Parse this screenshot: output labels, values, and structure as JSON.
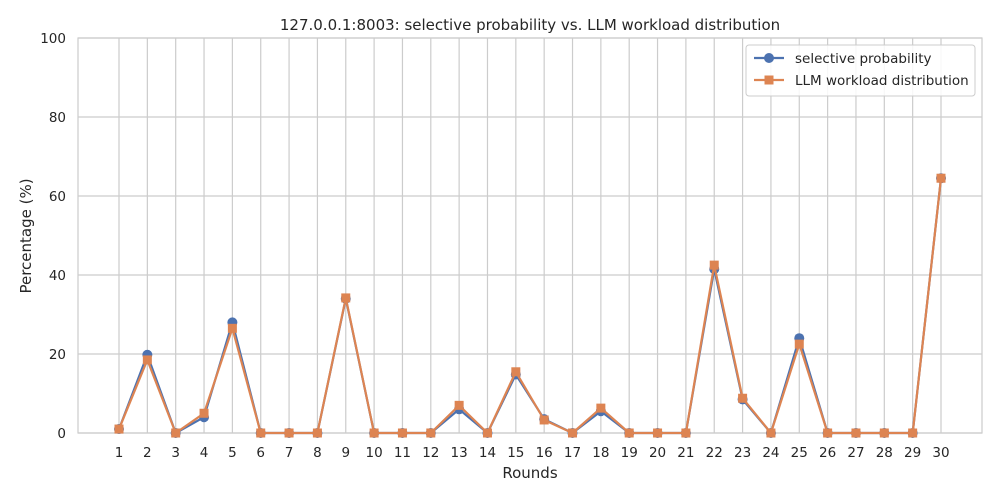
{
  "chart_data": {
    "type": "line",
    "title": "127.0.0.1:8003: selective probability vs. LLM workload distribution",
    "xlabel": "Rounds",
    "ylabel": "Percentage (%)",
    "ylim": [
      0,
      100
    ],
    "yticks": [
      0,
      20,
      40,
      60,
      80,
      100
    ],
    "grid": true,
    "legend_position": "top-right",
    "categories": [
      "1",
      "2",
      "3",
      "4",
      "5",
      "6",
      "7",
      "8",
      "9",
      "10",
      "11",
      "12",
      "13",
      "14",
      "15",
      "16",
      "17",
      "18",
      "19",
      "20",
      "21",
      "22",
      "23",
      "24",
      "25",
      "26",
      "27",
      "28",
      "29",
      "30"
    ],
    "series": [
      {
        "name": "selective probability",
        "color": "#4c72b0",
        "marker": "circle",
        "values": [
          1,
          19.8,
          0,
          4,
          28,
          0,
          0,
          0,
          34,
          0,
          0,
          0,
          6,
          0,
          14.8,
          3.5,
          0,
          5.5,
          0,
          0,
          0,
          41.5,
          8.5,
          0,
          24,
          0,
          0,
          0,
          0,
          64.5
        ]
      },
      {
        "name": "LLM workload distribution",
        "color": "#dd8452",
        "marker": "square",
        "values": [
          1,
          18.5,
          0,
          5,
          26.5,
          0,
          0,
          0,
          34.2,
          0,
          0,
          0,
          7,
          0,
          15.5,
          3.3,
          0,
          6.3,
          0,
          0,
          0,
          42.5,
          8.8,
          0,
          22.5,
          0,
          0,
          0,
          0,
          64.5
        ]
      }
    ]
  }
}
